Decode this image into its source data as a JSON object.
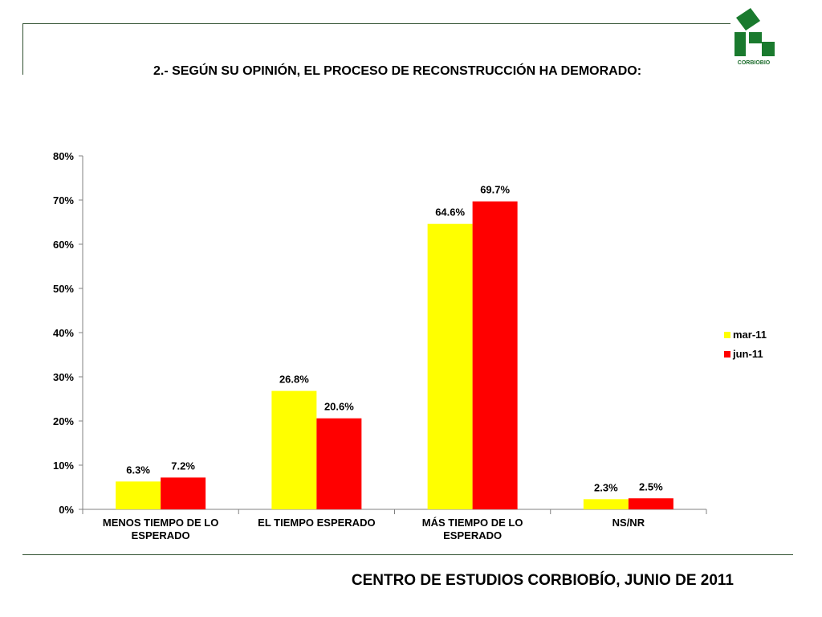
{
  "header": {
    "title": "2.-  SEGÚN SU OPINIÓN, EL PROCESO DE RECONSTRUCCIÓN HA DEMORADO:",
    "logo_text": "CORBIOBIO",
    "logo_icon": "corbiobio-logo"
  },
  "footer": {
    "text": "CENTRO DE ESTUDIOS CORBIOBÍO, JUNIO DE 2011"
  },
  "colors": {
    "series1": "#ffff00",
    "series2": "#ff0000",
    "logo_green": "#1a7a2e",
    "frame": "#2f4f2f"
  },
  "chart_data": {
    "type": "bar",
    "title": "",
    "xlabel": "",
    "ylabel": "",
    "ylim": [
      0,
      80
    ],
    "yticks": [
      "0%",
      "10%",
      "20%",
      "30%",
      "40%",
      "50%",
      "60%",
      "70%",
      "80%"
    ],
    "grid": false,
    "legend_position": "right",
    "categories": [
      [
        "MENOS TIEMPO DE LO",
        "ESPERADO"
      ],
      [
        "EL TIEMPO ESPERADO"
      ],
      [
        "MÁS TIEMPO DE LO",
        "ESPERADO"
      ],
      [
        "NS/NR"
      ]
    ],
    "series": [
      {
        "name": "mar-11",
        "values": [
          6.3,
          26.8,
          64.6,
          2.3
        ],
        "labels": [
          "6.3%",
          "26.8%",
          "64.6%",
          "2.3%"
        ]
      },
      {
        "name": "jun-11",
        "values": [
          7.2,
          20.6,
          69.7,
          2.5
        ],
        "labels": [
          "7.2%",
          "20.6%",
          "69.7%",
          "2.5%"
        ]
      }
    ]
  }
}
